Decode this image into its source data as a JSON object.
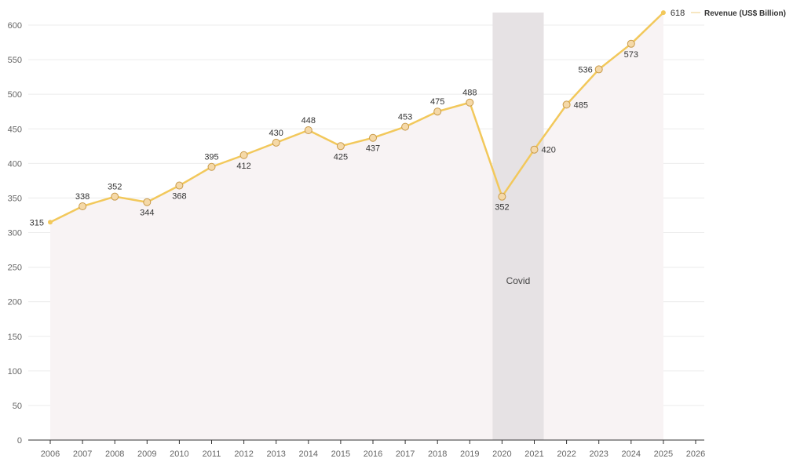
{
  "chart_data": {
    "type": "line",
    "title": "",
    "xlabel": "",
    "ylabel": "",
    "x": [
      "2006",
      "2007",
      "2008",
      "2009",
      "2010",
      "2011",
      "2012",
      "2013",
      "2014",
      "2015",
      "2016",
      "2017",
      "2018",
      "2019",
      "2020",
      "2021",
      "2022",
      "2023",
      "2024",
      "2025"
    ],
    "x_ticks": [
      "2006",
      "2007",
      "2008",
      "2009",
      "2010",
      "2011",
      "2012",
      "2013",
      "2014",
      "2015",
      "2016",
      "2017",
      "2018",
      "2019",
      "2020",
      "2021",
      "2022",
      "2023",
      "2024",
      "2025",
      "2026"
    ],
    "series": [
      {
        "name": "Revenue (US$ Billion)",
        "color": "#f2c85b",
        "values": [
          315,
          338,
          352,
          344,
          368,
          395,
          412,
          430,
          448,
          425,
          437,
          453,
          475,
          488,
          352,
          420,
          485,
          536,
          573,
          618
        ],
        "label_positions": [
          "left",
          "above",
          "above",
          "below",
          "below",
          "above",
          "below",
          "above",
          "above",
          "below",
          "below",
          "above",
          "above",
          "above",
          "below",
          "right",
          "right",
          "left",
          "below",
          "right"
        ]
      }
    ],
    "ylim": [
      0,
      600
    ],
    "y_ticks": [
      0,
      50,
      100,
      150,
      200,
      250,
      300,
      350,
      400,
      450,
      500,
      550,
      600
    ],
    "grid": true,
    "legend": "top-right",
    "area_fill_color": "#f8f3f4",
    "annotation_band": {
      "label": "Covid",
      "from": "2020",
      "to": "2021",
      "color": "#e6e2e4"
    }
  }
}
